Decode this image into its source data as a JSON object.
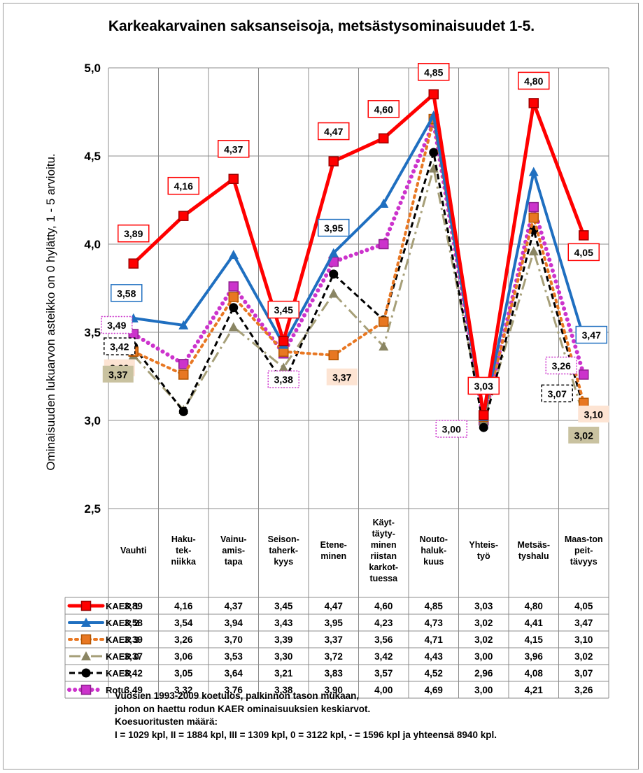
{
  "chart_data": {
    "type": "line",
    "title": "Karkeakarvainen saksanseisoja, metsästysominaisuudet 1-5.",
    "ylabel": "Ominaisuuden lukuarvon asteikko  on 0 hylätty, 1 - 5 arvioitu.",
    "ylim": [
      2.5,
      5.0
    ],
    "yticks": [
      "2,5",
      "3,0",
      "3,5",
      "4,0",
      "4,5",
      "5,0"
    ],
    "grid": true,
    "legend": "table-below",
    "categories": [
      [
        "Vauhti"
      ],
      [
        "Haku-",
        "tek-",
        "niikka"
      ],
      [
        "Vainu-",
        "amis-",
        "tapa"
      ],
      [
        "Seison-",
        "taherk-",
        "kyys"
      ],
      [
        "Etene-",
        "minen"
      ],
      [
        "Käyt-",
        "täyty-",
        "minen",
        "riistan",
        "karkot-",
        "tuessa"
      ],
      [
        "Nouto-",
        "haluk-",
        "kuus"
      ],
      [
        "Yhteis-",
        "työ"
      ],
      [
        "Metsäs-",
        "tyshalu"
      ],
      [
        "Maas-ton",
        "peit-",
        "tävyys"
      ]
    ],
    "series": [
      {
        "name": "KAER 1",
        "color": "#ff0000",
        "dash": "solid",
        "marker": "square",
        "values": [
          3.89,
          4.16,
          4.37,
          3.45,
          4.47,
          4.6,
          4.85,
          3.03,
          4.8,
          4.05
        ],
        "labels": [
          "3,89",
          "4,16",
          "4,37",
          "3,45",
          "4,47",
          "4,60",
          "4,85",
          "3,03",
          "4,80",
          "4,05"
        ]
      },
      {
        "name": "KAER 2",
        "color": "#1f6fc0",
        "dash": "solid",
        "marker": "triangle",
        "values": [
          3.58,
          3.54,
          3.94,
          3.43,
          3.95,
          4.23,
          4.73,
          3.02,
          4.41,
          3.47
        ],
        "labels": [
          "3,58",
          "3,54",
          "3,94",
          "3,43",
          "3,95",
          "4,23",
          "4,73",
          "3,02",
          "4,41",
          "3,47"
        ]
      },
      {
        "name": "KAER 3",
        "color": "#e87722",
        "dash": "dotted",
        "marker": "square",
        "values": [
          3.39,
          3.26,
          3.7,
          3.39,
          3.37,
          3.56,
          4.71,
          3.02,
          4.15,
          3.1
        ],
        "labels": [
          "3,39",
          "3,26",
          "3,70",
          "3,39",
          "3,37",
          "3,56",
          "4,71",
          "3,02",
          "4,15",
          "3,10"
        ]
      },
      {
        "name": "KAER 0",
        "color": "#a69f78",
        "dash": "dashdot",
        "marker": "triangle",
        "values": [
          3.37,
          3.06,
          3.53,
          3.3,
          3.72,
          3.42,
          4.43,
          3.0,
          3.96,
          3.02
        ],
        "labels": [
          "3,37",
          "3,06",
          "3,53",
          "3,30",
          "3,72",
          "3,42",
          "4,43",
          "3,00",
          "3,96",
          "3,02"
        ]
      },
      {
        "name": "KAER -",
        "color": "#000000",
        "dash": "dashed",
        "marker": "circle",
        "values": [
          3.42,
          3.05,
          3.64,
          3.21,
          3.83,
          3.57,
          4.52,
          2.96,
          4.08,
          3.07
        ],
        "labels": [
          "3,42",
          "3,05",
          "3,64",
          "3,21",
          "3,83",
          "3,57",
          "4,52",
          "2,96",
          "4,08",
          "3,07"
        ]
      },
      {
        "name": "Rotu",
        "color": "#cc33cc",
        "dash": "dots",
        "marker": "square",
        "values": [
          3.49,
          3.32,
          3.76,
          3.38,
          3.9,
          4.0,
          4.69,
          3.0,
          4.21,
          3.26
        ],
        "labels": [
          "3,49",
          "3,32",
          "3,76",
          "3,38",
          "3,90",
          "4,00",
          "4,69",
          "3,00",
          "4,21",
          "3,26"
        ]
      }
    ],
    "annotations": [
      {
        "series": 0,
        "text": "3,89",
        "box": "red"
      },
      {
        "series": 0,
        "text": "4,16",
        "box": "red"
      },
      {
        "series": 0,
        "text": "4,37",
        "box": "red"
      },
      {
        "series": 0,
        "text": "3,45",
        "box": "red"
      },
      {
        "series": 0,
        "text": "4,47",
        "box": "red"
      },
      {
        "series": 0,
        "text": "4,60",
        "box": "red"
      },
      {
        "series": 0,
        "text": "4,85",
        "box": "red"
      },
      {
        "series": 0,
        "text": "3,03",
        "box": "red"
      },
      {
        "series": 0,
        "text": "4,80",
        "box": "red"
      },
      {
        "series": 0,
        "text": "4,05",
        "box": "red"
      },
      {
        "series": 1,
        "text": "3,58",
        "box": "blue"
      },
      {
        "series": 1,
        "text": "3,95",
        "box": "blue"
      },
      {
        "series": 1,
        "text": "3,47",
        "box": "blue"
      },
      {
        "series": 5,
        "text": "3,49",
        "box": "magenta-dotted"
      },
      {
        "series": 5,
        "text": "3,38",
        "box": "magenta-dotted"
      },
      {
        "series": 5,
        "text": "3,00",
        "box": "magenta-dotted"
      },
      {
        "series": 5,
        "text": "3,26",
        "box": "magenta-dotted"
      },
      {
        "series": 4,
        "text": "3,42",
        "box": "black-dashed"
      },
      {
        "series": 4,
        "text": "3,07",
        "box": "black-dashed"
      },
      {
        "series": 2,
        "text": "3,39",
        "box": "peach"
      },
      {
        "series": 2,
        "text": "3,37",
        "box": "peach"
      },
      {
        "series": 2,
        "text": "3,10",
        "box": "peach"
      },
      {
        "series": 3,
        "text": "3,37",
        "box": "khaki"
      },
      {
        "series": 3,
        "text": "3,02",
        "box": "khaki"
      }
    ]
  },
  "footer": {
    "line1": "Vuosien 1993-2009 koetulos, palkinnon tason mukaan,",
    "line2": "johon on haettu rodun KAER ominaisuuksien keskiarvot.",
    "line3": "Koesuoritusten määrä:",
    "line4": "I = 1029 kpl, II = 1884 kpl, III  = 1309 kpl, 0 = 3122 kpl, - = 1596 kpl ja yhteensä 8940 kpl."
  }
}
